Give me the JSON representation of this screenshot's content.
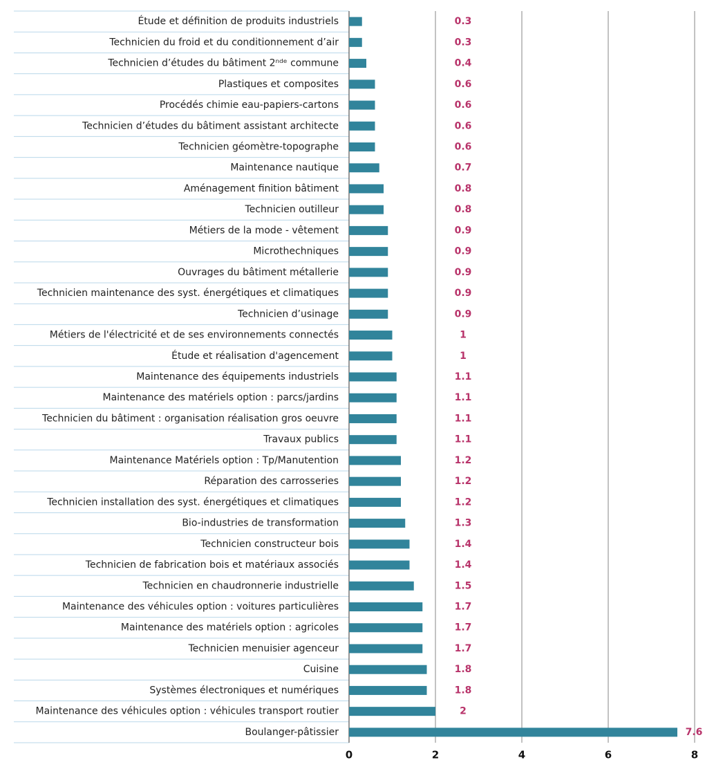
{
  "chart_data": {
    "type": "bar",
    "orientation": "horizontal",
    "categories": [
      "Étude et définition de produits industriels",
      "Technicien du froid et du conditionnement d’air",
      "Technicien d’études du bâtiment 2ⁿᵈᵉ commune",
      "Plastiques et composites",
      "Procédés chimie eau-papiers-cartons",
      "Technicien d’études du bâtiment assistant architecte",
      "Technicien géomètre-topographe",
      "Maintenance nautique",
      "Aménagement finition bâtiment",
      "Technicien outilleur",
      "Métiers de la mode - vêtement",
      "Microthechniques",
      "Ouvrages du bâtiment métallerie",
      "Technicien maintenance des syst. énergétiques et climatiques",
      "Technicien d’usinage",
      "Métiers de l'électricité et de ses environnements connectés",
      "Étude et réalisation d'agencement",
      "Maintenance des équipements industriels",
      "Maintenance des matériels option : parcs/jardins",
      "Technicien du bâtiment : organisation réalisation gros oeuvre",
      "Travaux publics",
      "Maintenance Matériels option : Tp/Manutention",
      "Réparation des carrosseries",
      "Technicien installation des syst. énergétiques et climatiques",
      "Bio-industries de transformation",
      "Technicien constructeur bois",
      "Technicien de fabrication bois et matériaux associés",
      "Technicien en chaudronnerie industrielle",
      "Maintenance des véhicules option : voitures particulières",
      "Maintenance des matériels option : agricoles",
      "Technicien menuisier agenceur",
      "Cuisine",
      "Systèmes électroniques et numériques",
      "Maintenance des véhicules option : véhicules transport routier",
      "Boulanger-pâtissier"
    ],
    "values": [
      0.3,
      0.3,
      0.4,
      0.6,
      0.6,
      0.6,
      0.6,
      0.7,
      0.8,
      0.8,
      0.9,
      0.9,
      0.9,
      0.9,
      0.9,
      1,
      1,
      1.1,
      1.1,
      1.1,
      1.1,
      1.2,
      1.2,
      1.2,
      1.3,
      1.4,
      1.4,
      1.5,
      1.7,
      1.7,
      1.7,
      1.8,
      1.8,
      2,
      7.6
    ],
    "color": "#31849b",
    "value_label_color": "#b8336a",
    "xlim": [
      0,
      8
    ],
    "xticks": [
      0,
      2,
      4,
      6,
      8
    ],
    "grid": true
  }
}
